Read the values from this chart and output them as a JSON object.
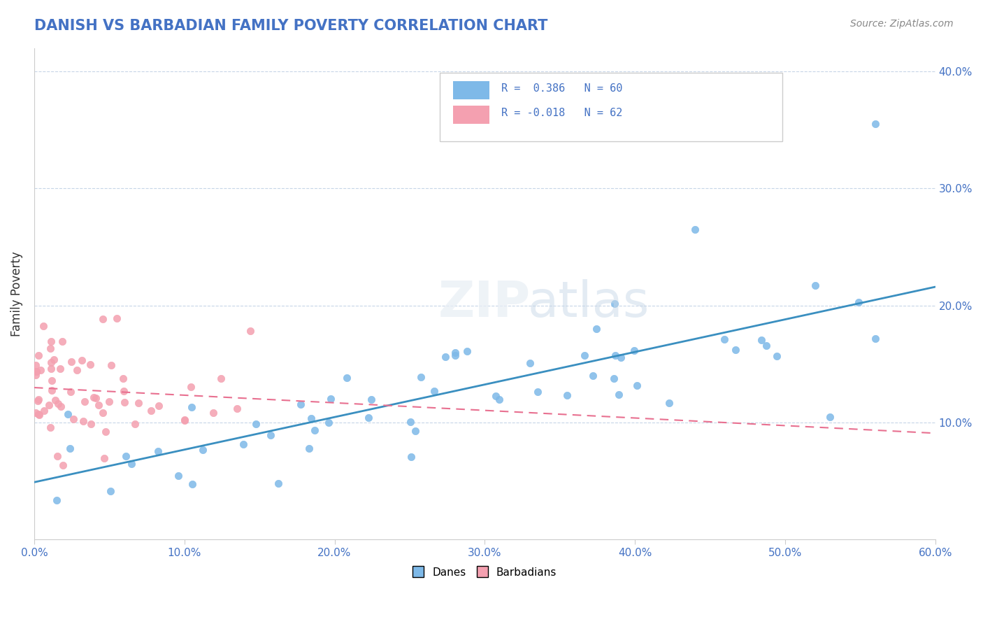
{
  "title": "DANISH VS BARBADIAN FAMILY POVERTY CORRELATION CHART",
  "source": "Source: ZipAtlas.com",
  "xlabel": "",
  "ylabel": "Family Poverty",
  "xlim": [
    0.0,
    0.6
  ],
  "ylim": [
    0.0,
    0.42
  ],
  "xtick_vals": [
    0.0,
    0.1,
    0.2,
    0.3,
    0.4,
    0.5,
    0.6
  ],
  "ytick_vals": [
    0.1,
    0.2,
    0.3,
    0.4
  ],
  "danes_color": "#7eb9e8",
  "barbadians_color": "#f4a0b0",
  "danes_line_color": "#3a8fc0",
  "barbadians_line_color": "#e87090",
  "danes_R": 0.386,
  "danes_N": 60,
  "barbadians_R": -0.018,
  "barbadians_N": 62
}
